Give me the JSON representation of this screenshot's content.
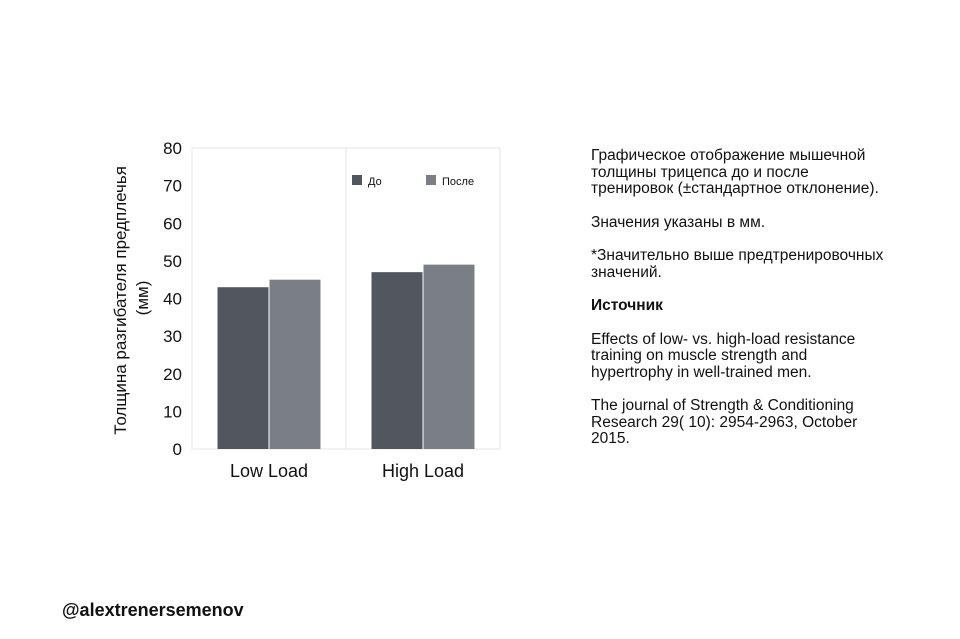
{
  "chart_data": {
    "type": "bar",
    "categories": [
      "Low Load",
      "High Load"
    ],
    "series": [
      {
        "name": "До",
        "values": [
          43,
          47
        ],
        "color": "#52575e"
      },
      {
        "name": "После",
        "values": [
          45,
          49
        ],
        "color": "#7a7f86"
      }
    ],
    "ylabel": "Толщина разгибателя предплечья (мм)",
    "ylabel_lines": [
      "Толщина разгибателя предплечья",
      "(мм)"
    ],
    "ylim": [
      0,
      80
    ],
    "yticks": [
      0,
      10,
      20,
      30,
      40,
      50,
      60,
      70,
      80
    ],
    "legend_position": "top-right",
    "grid": false
  },
  "description": {
    "p1": "Графическое отображение мышечной толщины трицепса до и после тренировок (±стандартное отклонение).",
    "p2": "Значения указаны в мм.",
    "p3": "*Значительно выше предтренировочных значений.",
    "source_heading": "Источник",
    "p4": "Effects of low- vs. high-load resistance training on muscle strength and hypertrophy in well-trained men.",
    "p5": "The journal of Strength & Conditioning Research 29( 10): 2954-2963, October 2015."
  },
  "author_handle": "@alextrenersemenov"
}
